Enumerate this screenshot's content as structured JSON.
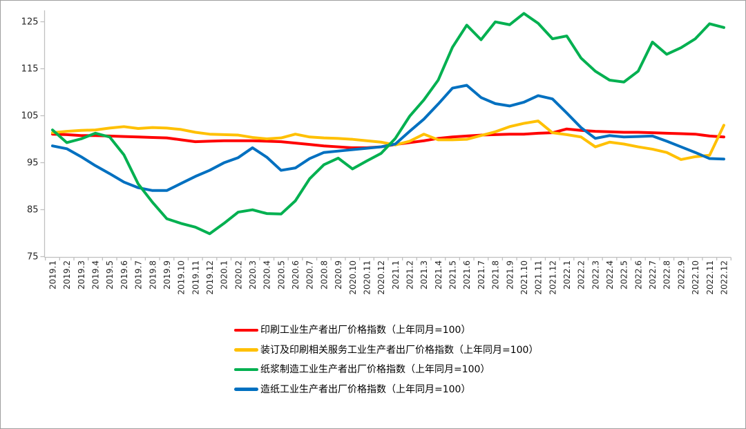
{
  "chart_data": {
    "type": "line",
    "title": "",
    "xlabel": "",
    "ylabel": "",
    "ylim": [
      75,
      125
    ],
    "yticks": [
      75,
      85,
      95,
      105,
      115,
      125
    ],
    "grid": false,
    "legend_position": "bottom-left",
    "axis_color": "#BFBFBF",
    "label_color": "#262626",
    "categories": [
      "2019.1",
      "2019.2",
      "2019.3",
      "2019.4",
      "2019.5",
      "2019.6",
      "2019.7",
      "2019.8",
      "2019.9",
      "2019.10",
      "2019.11",
      "2019.12",
      "2020.1",
      "2020.2",
      "2020.3",
      "2020.4",
      "2020.5",
      "2020.6",
      "2020.7",
      "2020.8",
      "2020.9",
      "2020.10",
      "2020.11",
      "2020.12",
      "2021.1",
      "2021.2",
      "2021.3",
      "2021.4",
      "2021.5",
      "2021.6",
      "2021.7",
      "2021.8",
      "2021.9",
      "2021.10",
      "2021.11",
      "2021.12",
      "2022.1",
      "2022.2",
      "2022.3",
      "2022.4",
      "2022.5",
      "2022.6",
      "2022.7",
      "2022.8",
      "2022.9",
      "2022.10",
      "2022.11",
      "2022.12"
    ],
    "series": [
      {
        "name": "印刷工业生产者出厂价格指数（上年同月=100）",
        "color": "#FF0000",
        "values": [
          101.0,
          100.9,
          100.7,
          100.7,
          100.6,
          100.5,
          100.4,
          100.3,
          100.2,
          99.8,
          99.4,
          99.5,
          99.6,
          99.6,
          99.6,
          99.5,
          99.4,
          99.1,
          98.8,
          98.5,
          98.3,
          98.1,
          98.1,
          98.3,
          98.8,
          99.2,
          99.6,
          100.1,
          100.4,
          100.6,
          100.8,
          100.9,
          101.0,
          101.0,
          101.2,
          101.3,
          102.1,
          101.8,
          101.6,
          101.5,
          101.4,
          101.4,
          101.3,
          101.2,
          101.1,
          101.0,
          100.6,
          100.4
        ]
      },
      {
        "name": "装订及印刷相关服务工业生产者出厂价格指数（上年同月=100）",
        "color": "#FFC000",
        "values": [
          101.3,
          101.6,
          101.8,
          101.9,
          102.3,
          102.6,
          102.2,
          102.4,
          102.3,
          102.0,
          101.4,
          101.0,
          100.9,
          100.8,
          100.3,
          100.0,
          100.2,
          101.0,
          100.4,
          100.2,
          100.1,
          99.9,
          99.6,
          99.3,
          98.7,
          99.5,
          101.0,
          99.8,
          99.8,
          99.9,
          100.7,
          101.5,
          102.6,
          103.3,
          103.8,
          101.3,
          100.9,
          100.4,
          98.3,
          99.3,
          98.9,
          98.3,
          97.8,
          97.1,
          95.6,
          96.2,
          96.5,
          102.9
        ]
      },
      {
        "name": "纸浆制造工业生产者出厂价格指数（上年同月=100）",
        "color": "#00B050",
        "values": [
          101.9,
          99.2,
          100.0,
          101.2,
          100.4,
          96.6,
          90.4,
          86.5,
          83.0,
          82.0,
          81.2,
          79.8,
          82.0,
          84.4,
          84.9,
          84.1,
          84.0,
          86.8,
          91.5,
          94.5,
          95.9,
          93.6,
          95.3,
          96.9,
          100.1,
          104.8,
          108.3,
          112.5,
          119.5,
          124.2,
          121.1,
          124.9,
          124.3,
          126.7,
          124.6,
          121.3,
          121.9,
          117.2,
          114.4,
          112.5,
          112.1,
          114.4,
          120.6,
          118.0,
          119.4,
          121.3,
          124.5,
          123.7
        ]
      },
      {
        "name": "造纸工业生产者出厂价格指数（上年同月=100）",
        "color": "#0070C0",
        "values": [
          98.5,
          97.9,
          96.2,
          94.3,
          92.6,
          90.8,
          89.6,
          89.0,
          89.0,
          90.5,
          92.0,
          93.3,
          94.9,
          96.0,
          98.1,
          96.1,
          93.3,
          93.8,
          95.8,
          97.1,
          97.4,
          97.7,
          98.0,
          98.3,
          98.9,
          101.6,
          104.2,
          107.4,
          110.8,
          111.4,
          108.8,
          107.5,
          107.0,
          107.8,
          109.2,
          108.5,
          105.5,
          102.4,
          100.1,
          100.7,
          100.4,
          100.5,
          100.6,
          99.5,
          98.3,
          97.1,
          95.8,
          95.7
        ]
      }
    ]
  }
}
